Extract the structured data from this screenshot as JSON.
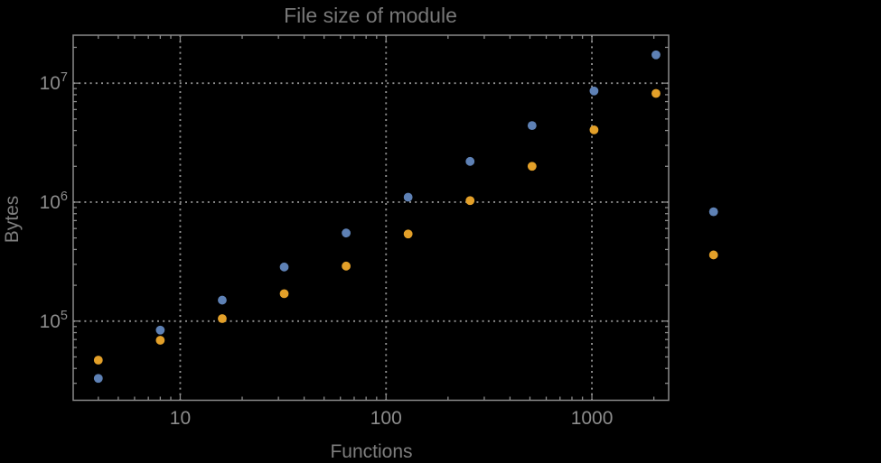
{
  "title": "File size of module",
  "colors": {
    "background": "#000000",
    "frame": "#8a8a8a",
    "grid": "#8f8f8f",
    "tick_label": "#8c8c8c",
    "title_label": "#787878",
    "axis_label": "#7e7e7e",
    "series_blue": "#5e81b5",
    "series_orange": "#e3a029"
  },
  "chart_data": {
    "type": "scatter",
    "title": "File size of module",
    "xlabel": "Functions",
    "ylabel": "Bytes",
    "x_scale": "log",
    "y_scale": "log",
    "grid": "dotted gridlines at decade values on both axes",
    "legend": "none",
    "framed": true,
    "plot_range_clipping": false,
    "marker": "filled circle, ~10px diameter",
    "xlim": [
      3.02,
      2360
    ],
    "ylim": [
      21600,
      25300000
    ],
    "x": [
      4,
      8,
      16,
      32,
      64,
      128,
      256,
      512,
      1024,
      2048,
      3900
    ],
    "series": [
      {
        "name": "blue",
        "color": "#5e81b5",
        "values": [
          33000,
          84000,
          150000,
          285000,
          550000,
          1100000,
          2200000,
          4400000,
          8600000,
          17300000,
          830000
        ]
      },
      {
        "name": "orange",
        "color": "#e3a029",
        "values": [
          47000,
          69000,
          105000,
          170000,
          290000,
          540000,
          1030000,
          2000000,
          4050000,
          8200000,
          360000
        ]
      }
    ],
    "x_ticks": {
      "major": [
        10,
        100,
        1000
      ],
      "labels": [
        "10",
        "100",
        "1000"
      ],
      "minor": [
        4,
        5,
        6,
        7,
        8,
        9,
        20,
        30,
        40,
        50,
        60,
        70,
        80,
        90,
        200,
        300,
        400,
        500,
        600,
        700,
        800,
        900,
        2000
      ]
    },
    "y_ticks": {
      "major": [
        100000,
        1000000,
        10000000
      ],
      "labels": [
        {
          "base": "10",
          "exp": "5"
        },
        {
          "base": "10",
          "exp": "6"
        },
        {
          "base": "10",
          "exp": "7"
        }
      ],
      "minor": [
        30000,
        40000,
        50000,
        60000,
        70000,
        80000,
        90000,
        200000,
        300000,
        400000,
        500000,
        600000,
        700000,
        800000,
        900000,
        2000000,
        3000000,
        4000000,
        5000000,
        6000000,
        7000000,
        8000000,
        9000000,
        20000000
      ]
    }
  }
}
